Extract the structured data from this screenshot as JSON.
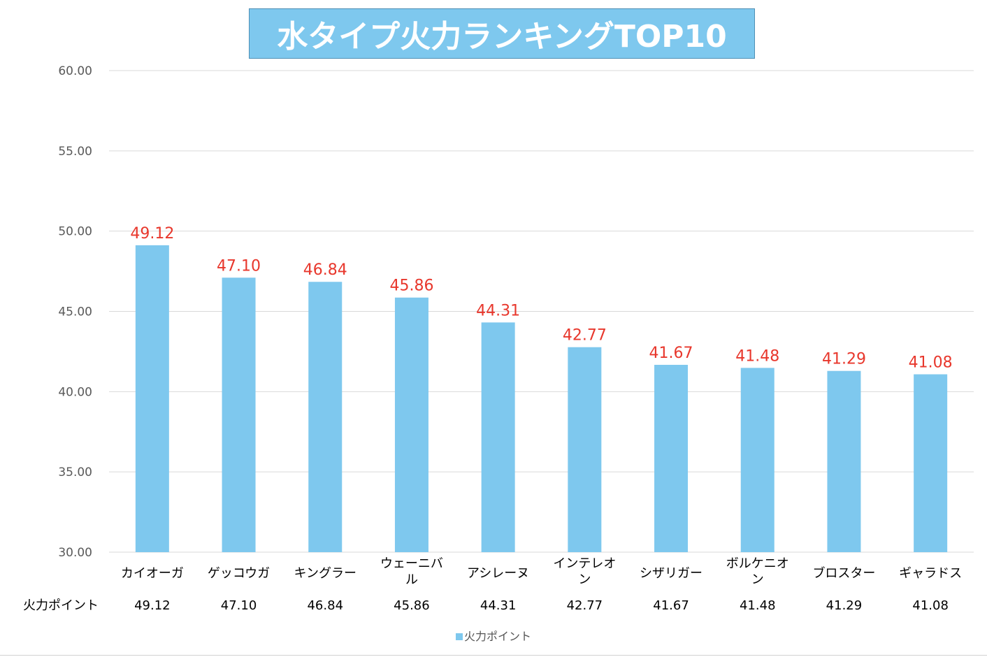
{
  "chart_data": {
    "type": "bar",
    "title": "水タイプ火力ランキングTOP10",
    "categories": [
      "カイオーガ",
      "ゲッコウガ",
      "キングラー",
      "ウェーニバル",
      "アシレーヌ",
      "インテレオン",
      "シザリガー",
      "ボルケニオン",
      "ブロスター",
      "ギャラドス"
    ],
    "series": [
      {
        "name": "火力ポイント",
        "values": [
          49.12,
          47.1,
          46.84,
          45.86,
          44.31,
          42.77,
          41.67,
          41.48,
          41.29,
          41.08
        ],
        "color": "#7ec8ee"
      }
    ],
    "value_labels": [
      "49.12",
      "47.10",
      "46.84",
      "45.86",
      "44.31",
      "42.77",
      "41.67",
      "41.48",
      "41.29",
      "41.08"
    ],
    "ylim": [
      30,
      60
    ],
    "yticks": [
      "30.00",
      "35.00",
      "40.00",
      "45.00",
      "50.00",
      "55.00",
      "60.00"
    ],
    "grid": true,
    "legend_position": "bottom",
    "data_table": {
      "row_label": "火力ポイント",
      "cells": [
        "49.12",
        "47.10",
        "46.84",
        "45.86",
        "44.31",
        "42.77",
        "41.67",
        "41.48",
        "41.29",
        "41.08"
      ]
    },
    "colors": {
      "bar": "#7ec8ee",
      "data_label": "#e8372c",
      "title_box": "#7ec8ee",
      "gridline": "#d9d9d9"
    }
  }
}
